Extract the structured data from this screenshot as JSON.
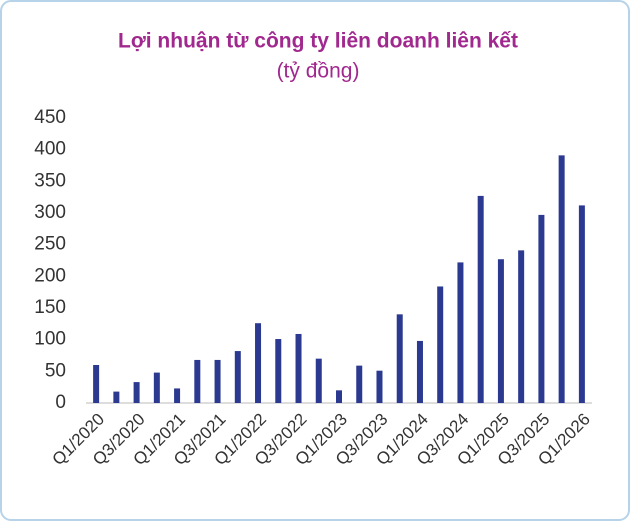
{
  "chart_data": {
    "type": "bar",
    "title": "Lợi nhuận từ công ty liên doanh liên kết",
    "subtitle": "(tỷ đồng)",
    "categories": [
      "Q1/2020",
      null,
      "Q3/2020",
      null,
      "Q1/2021",
      null,
      "Q3/2021",
      null,
      "Q1/2022",
      null,
      "Q3/2022",
      null,
      "Q1/2023",
      null,
      "Q3/2023",
      null,
      "Q1/2024",
      null,
      "Q3/2024",
      null,
      "Q1/2025",
      null,
      "Q3/2025",
      null,
      "Q1/2026"
    ],
    "values": [
      60,
      18,
      33,
      48,
      23,
      68,
      68,
      82,
      126,
      101,
      109,
      70,
      20,
      59,
      51,
      140,
      98,
      184,
      222,
      327,
      227,
      241,
      297,
      391,
      312
    ],
    "color": "#2b3990",
    "ylim": [
      0,
      450
    ],
    "yticks": [
      0,
      50,
      100,
      150,
      200,
      250,
      300,
      350,
      400,
      450
    ],
    "grid": false
  }
}
